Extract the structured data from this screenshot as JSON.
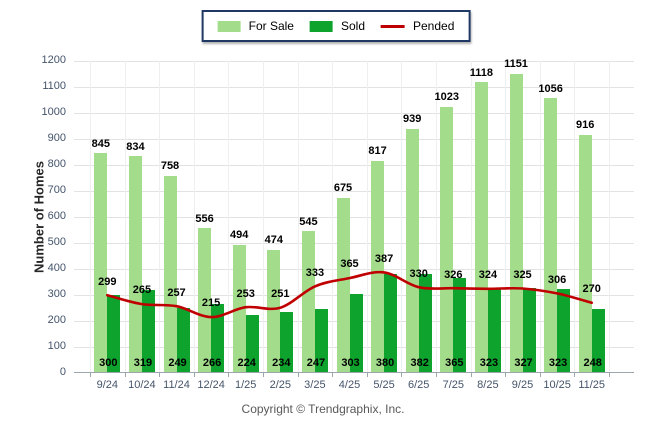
{
  "legend": {
    "items": [
      "For Sale",
      "Sold",
      "Pended"
    ]
  },
  "footer": {
    "copyright": "Copyright © Trendgraphix, Inc."
  },
  "chart_data": {
    "type": "bar",
    "title": "",
    "xlabel": "",
    "ylabel": "Number of Homes",
    "categories": [
      "9/24",
      "10/24",
      "11/24",
      "12/24",
      "1/25",
      "2/25",
      "3/25",
      "4/25",
      "5/25",
      "6/25",
      "7/25",
      "8/25",
      "9/25",
      "10/25",
      "11/25"
    ],
    "series": [
      {
        "name": "For Sale",
        "type": "bar",
        "color": "#A3DC8B",
        "values": [
          845,
          834,
          758,
          556,
          494,
          474,
          545,
          675,
          817,
          939,
          1023,
          1118,
          1151,
          1056,
          916
        ]
      },
      {
        "name": "Sold",
        "type": "bar",
        "color": "#0EA32D",
        "values": [
          300,
          319,
          249,
          266,
          224,
          234,
          247,
          303,
          380,
          382,
          365,
          323,
          327,
          323,
          248
        ]
      },
      {
        "name": "Pended",
        "type": "line",
        "color": "#C00000",
        "values": [
          299,
          265,
          257,
          215,
          253,
          251,
          333,
          365,
          387,
          330,
          326,
          324,
          325,
          306,
          270
        ]
      }
    ],
    "ylim": [
      0,
      1200
    ],
    "yticks": [
      0,
      100,
      200,
      300,
      400,
      500,
      600,
      700,
      800,
      900,
      1000,
      1100,
      1200
    ],
    "grid": true,
    "legend_position": "top",
    "colors": {
      "h_gridline": "#E2E2E2",
      "v_gridline": "#EFEFEF",
      "axis": "#9DA6AD",
      "tick_text": "#44546A",
      "value_text": "#000000"
    }
  }
}
